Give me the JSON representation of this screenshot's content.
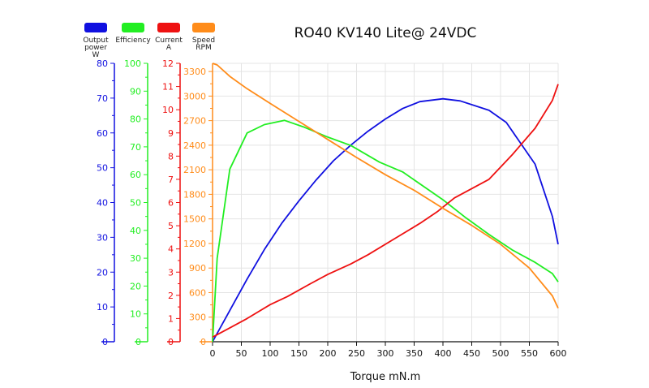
{
  "chart_data": {
    "type": "line",
    "title": "RO40 KV140 Lite@ 24VDC",
    "xlabel": "Torque mN.m",
    "xlim": [
      0,
      600
    ],
    "x_ticks": [
      0,
      50,
      100,
      150,
      200,
      250,
      300,
      350,
      400,
      450,
      500,
      550,
      600
    ],
    "grid": true,
    "legend_position": "top-left",
    "axes": [
      {
        "id": "power",
        "label_lines": [
          "Output",
          "power",
          "W"
        ],
        "color": "#1010e0",
        "lim": [
          0,
          80
        ],
        "ticks": [
          0,
          10,
          20,
          30,
          40,
          50,
          60,
          70,
          80
        ]
      },
      {
        "id": "efficiency",
        "label_lines": [
          "Efficiency"
        ],
        "color": "#22ee22",
        "lim": [
          0,
          100
        ],
        "ticks": [
          0,
          10,
          20,
          30,
          40,
          50,
          60,
          70,
          80,
          90,
          100
        ]
      },
      {
        "id": "current",
        "label_lines": [
          "Current",
          "A"
        ],
        "color": "#ee1111",
        "lim": [
          0,
          12
        ],
        "ticks": [
          0,
          1,
          2,
          3,
          4,
          5,
          6,
          7,
          8,
          9,
          10,
          11,
          12
        ]
      },
      {
        "id": "speed",
        "label_lines": [
          "Speed",
          "RPM"
        ],
        "color": "#ff8c1a",
        "lim": [
          0,
          3400
        ],
        "ticks": [
          0,
          300,
          600,
          900,
          1200,
          1500,
          1800,
          2100,
          2400,
          2700,
          3000,
          3300
        ]
      }
    ],
    "series": [
      {
        "name": "Output power",
        "axis": "power",
        "color": "#1010e0",
        "x": [
          0,
          30,
          60,
          90,
          120,
          150,
          180,
          210,
          240,
          270,
          300,
          330,
          360,
          400,
          430,
          480,
          510,
          560,
          590,
          600
        ],
        "y": [
          0,
          9,
          18,
          26.5,
          34,
          40.5,
          46.5,
          52,
          56.5,
          60.5,
          64,
          67,
          69,
          69.8,
          69.2,
          66.5,
          63,
          51,
          36,
          28
        ]
      },
      {
        "name": "Efficiency",
        "axis": "efficiency",
        "color": "#22ee22",
        "x": [
          0,
          8,
          30,
          60,
          90,
          125,
          160,
          200,
          240,
          290,
          330,
          400,
          440,
          480,
          520,
          560,
          590,
          600
        ],
        "y": [
          0,
          30,
          62,
          75,
          78,
          79.5,
          77,
          73.5,
          70.5,
          64.5,
          61,
          51,
          44.5,
          38.5,
          33,
          28.5,
          24.5,
          21.5
        ]
      },
      {
        "name": "Current",
        "axis": "current",
        "color": "#ee1111",
        "x": [
          0,
          30,
          60,
          100,
          130,
          170,
          200,
          240,
          270,
          320,
          360,
          390,
          420,
          480,
          520,
          560,
          590,
          600
        ],
        "y": [
          0.2,
          0.6,
          1.0,
          1.6,
          1.95,
          2.5,
          2.9,
          3.35,
          3.75,
          4.5,
          5.1,
          5.6,
          6.2,
          7.0,
          8.05,
          9.2,
          10.4,
          11.1
        ]
      },
      {
        "name": "Speed",
        "axis": "speed",
        "color": "#ff8c1a",
        "x": [
          0,
          8,
          30,
          60,
          100,
          150,
          200,
          250,
          300,
          350,
          400,
          450,
          500,
          550,
          590,
          600
        ],
        "y": [
          3400,
          3380,
          3240,
          3090,
          2910,
          2690,
          2470,
          2250,
          2040,
          1850,
          1630,
          1420,
          1190,
          900,
          560,
          410
        ]
      }
    ]
  }
}
